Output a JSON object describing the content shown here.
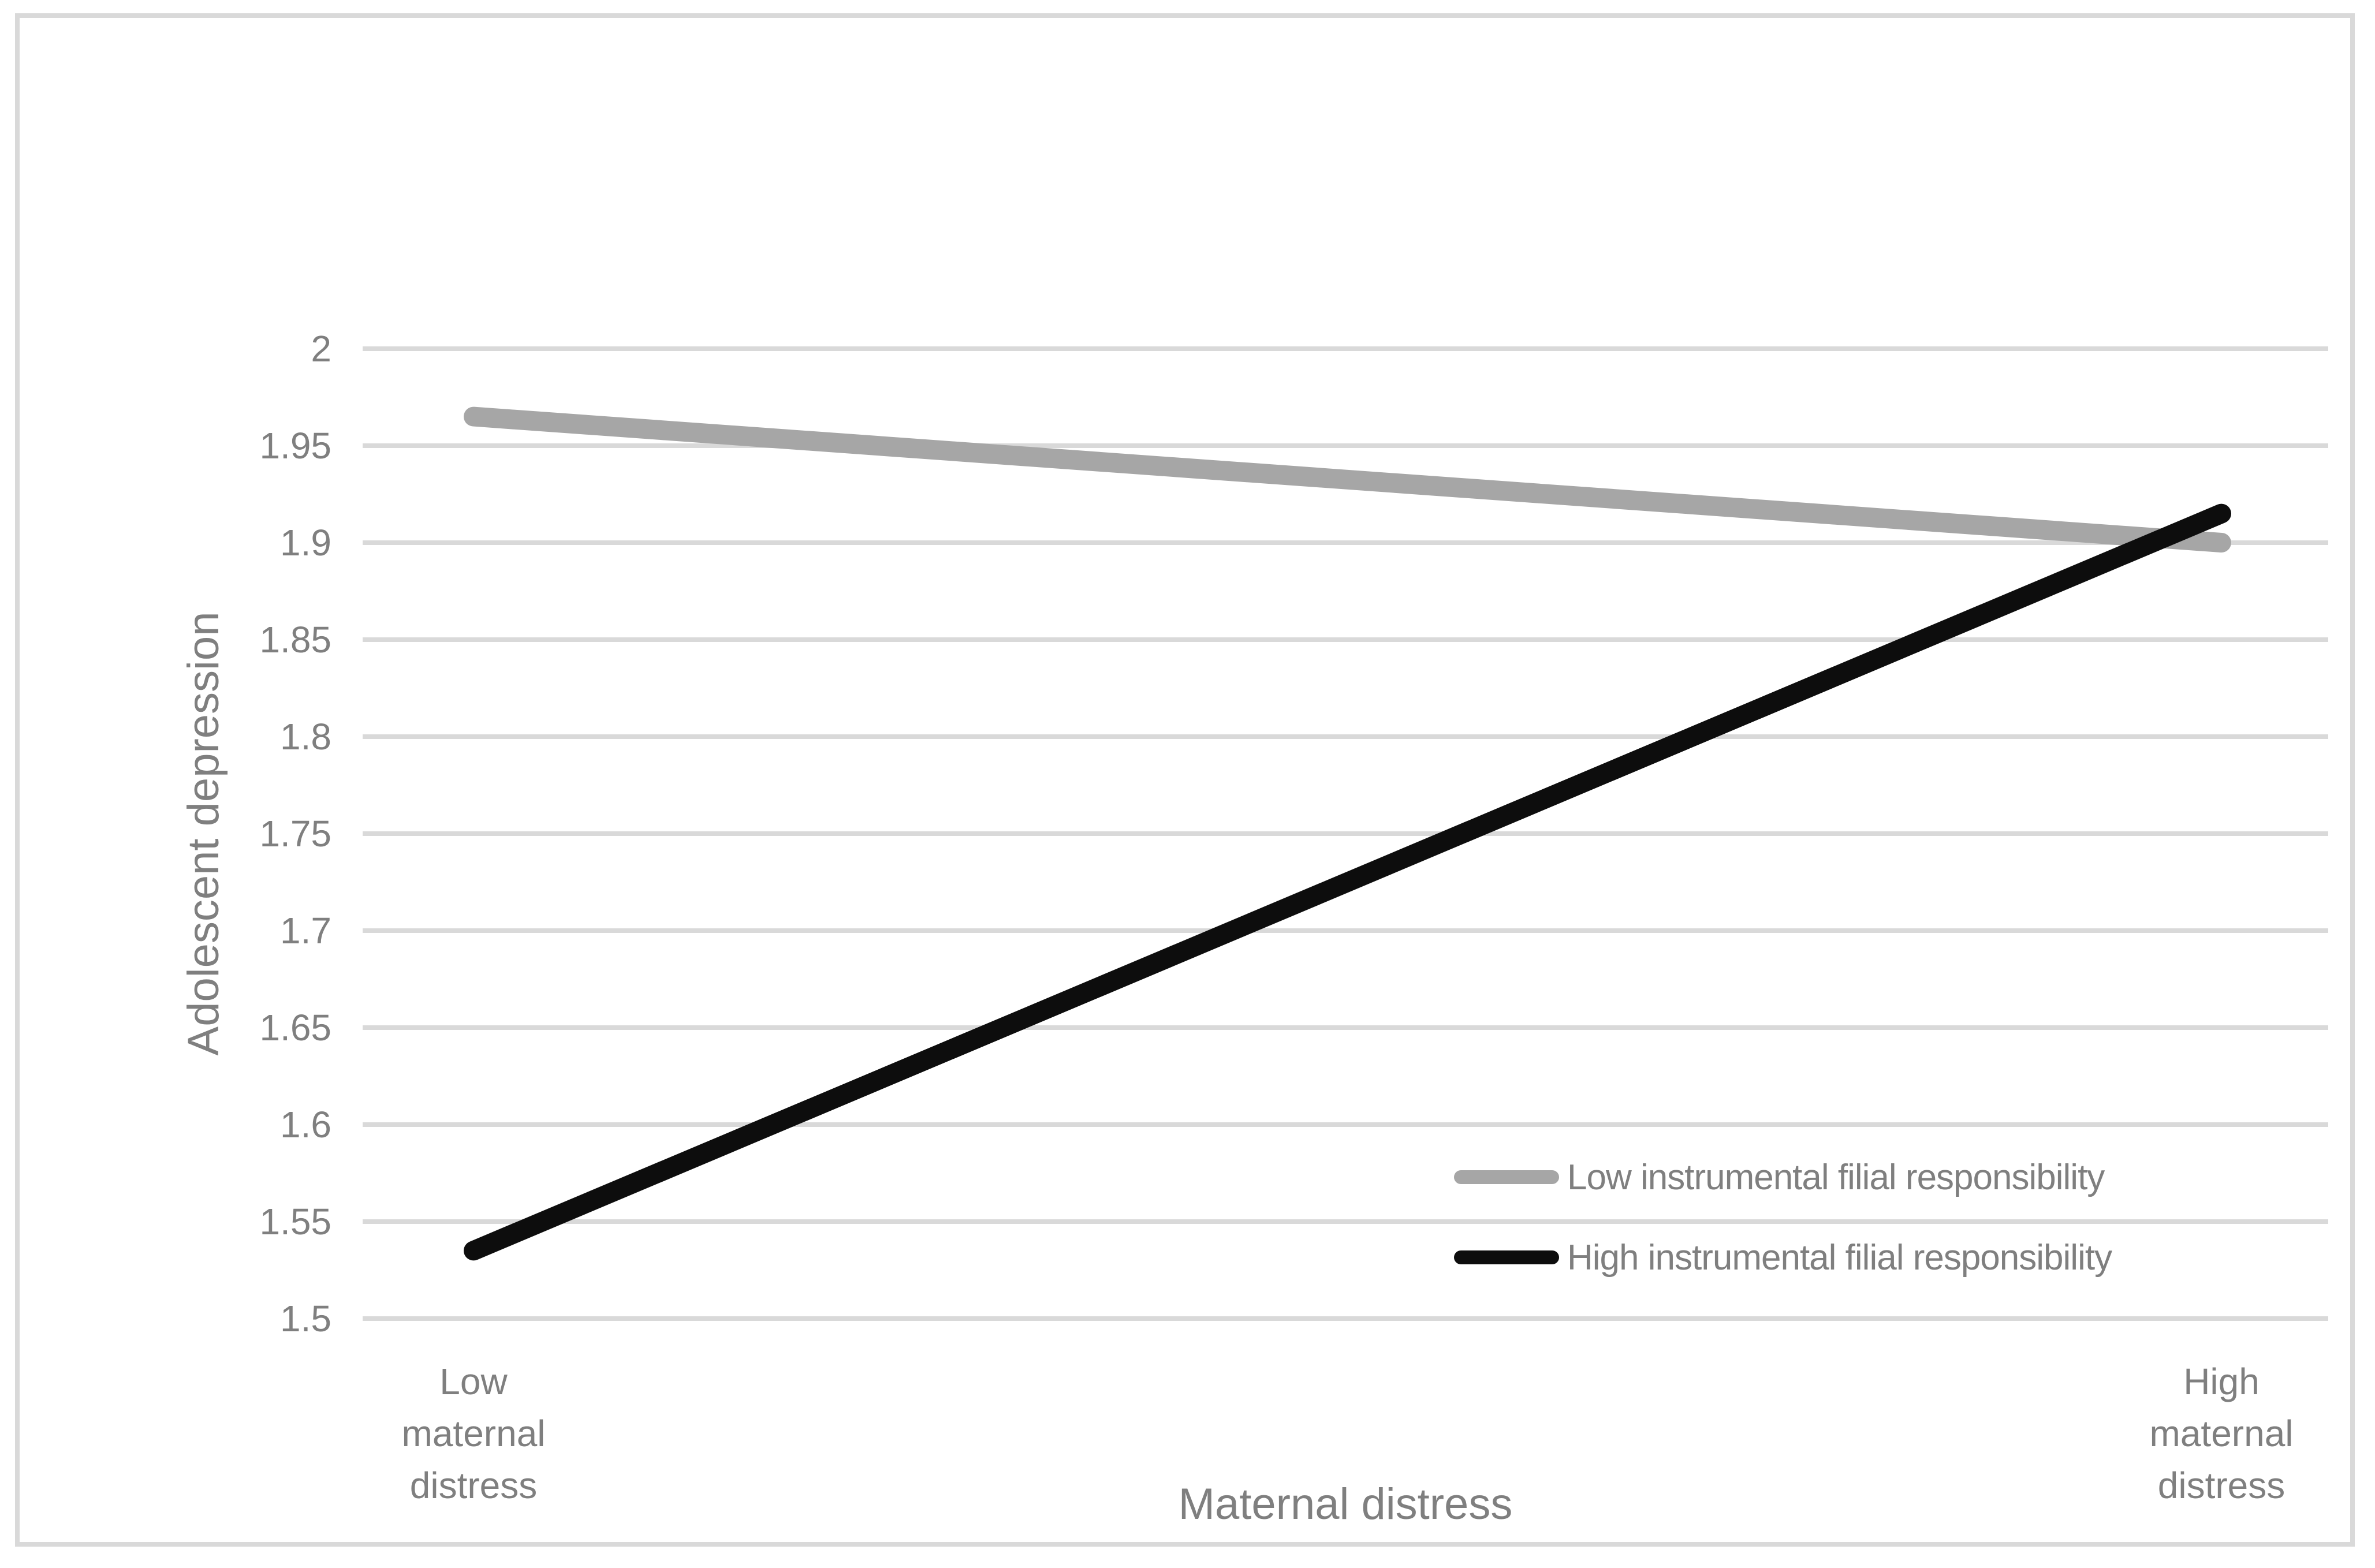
{
  "figure": {
    "background_color": "#ffffff",
    "border_color": "#d9d9d9",
    "text_color": "#7f7f7f"
  },
  "chart_data": {
    "type": "line",
    "title": "",
    "xlabel": "Maternal distress",
    "ylabel": "Adolescent depression",
    "categories": [
      "Low maternal distress",
      "High maternal distress"
    ],
    "series": [
      {
        "name": "Low instrumental filial responsibility",
        "color": "#a6a6a6",
        "values": [
          1.965,
          1.9
        ]
      },
      {
        "name": "High instrumental filial responsibility",
        "color": "#0d0d0d",
        "values": [
          1.535,
          1.915
        ]
      }
    ],
    "ylim": [
      1.5,
      2.0
    ],
    "ytick_step": 0.05,
    "yticks": [
      "2",
      "1.95",
      "1.9",
      "1.85",
      "1.8",
      "1.75",
      "1.7",
      "1.65",
      "1.6",
      "1.55",
      "1.5"
    ],
    "grid": "horizontal gridlines only, no axis lines",
    "gridline_color": "#d9d9d9",
    "legend_position": "inside lower right",
    "line_style": "thick straight lines with rounded caps"
  }
}
